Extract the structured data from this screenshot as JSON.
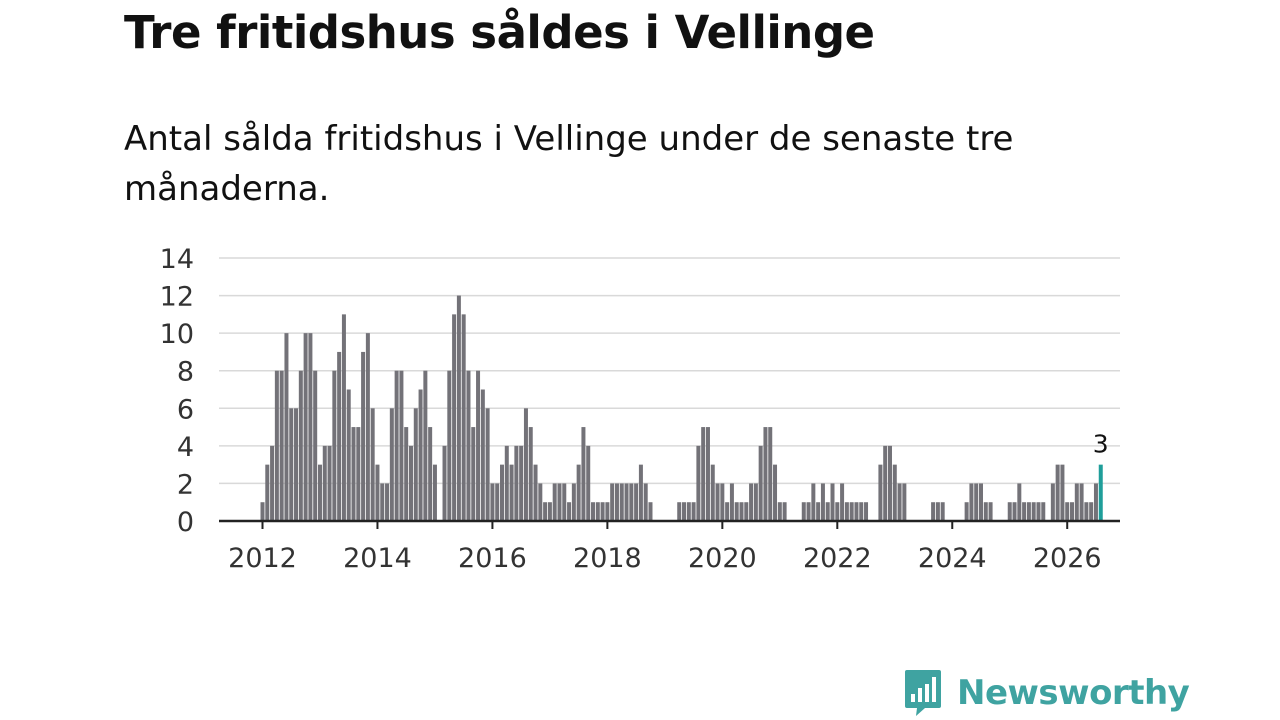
{
  "title": "Tre fritidshus såldes i Vellinge",
  "subtitle": "Antal sålda fritidshus i Vellinge under de senaste tre månaderna.",
  "brand": "Newsworthy",
  "colors": {
    "bar": "#737278",
    "highlight": "#1f9e9a",
    "grid": "#d9d9d9",
    "axis": "#222222",
    "brand": "#3fa3a1"
  },
  "chart_data": {
    "type": "bar",
    "title": "Tre fritidshus såldes i Vellinge",
    "xlabel": "",
    "ylabel": "",
    "ylim": [
      0,
      14
    ],
    "yticks": [
      "0",
      "2",
      "4",
      "6",
      "8",
      "10",
      "12",
      "14"
    ],
    "xticks": [
      "2012",
      "2014",
      "2016",
      "2018",
      "2020",
      "2022",
      "2024",
      "2026"
    ],
    "x_start": "2012-01",
    "highlight_label": "3",
    "values": [
      1,
      3,
      4,
      8,
      8,
      10,
      6,
      6,
      8,
      10,
      10,
      8,
      3,
      4,
      4,
      8,
      9,
      11,
      7,
      5,
      5,
      9,
      10,
      6,
      3,
      2,
      2,
      6,
      8,
      8,
      5,
      4,
      6,
      7,
      8,
      5,
      3,
      0,
      4,
      8,
      11,
      12,
      11,
      8,
      5,
      8,
      7,
      6,
      2,
      2,
      3,
      4,
      3,
      4,
      4,
      6,
      5,
      3,
      2,
      1,
      1,
      2,
      2,
      2,
      1,
      2,
      3,
      5,
      4,
      1,
      1,
      1,
      1,
      2,
      2,
      2,
      2,
      2,
      2,
      3,
      2,
      1,
      0,
      0,
      0,
      0,
      0,
      1,
      1,
      1,
      1,
      4,
      5,
      5,
      3,
      2,
      2,
      1,
      2,
      1,
      1,
      1,
      2,
      2,
      4,
      5,
      5,
      3,
      1,
      1,
      0,
      0,
      0,
      1,
      1,
      2,
      1,
      2,
      1,
      2,
      1,
      2,
      1,
      1,
      1,
      1,
      1,
      0,
      0,
      3,
      4,
      4,
      3,
      2,
      2,
      0,
      0,
      0,
      0,
      0,
      1,
      1,
      1,
      0,
      0,
      0,
      0,
      1,
      2,
      2,
      2,
      1,
      1,
      0,
      0,
      0,
      1,
      1,
      2,
      1,
      1,
      1,
      1,
      1,
      0,
      2,
      3,
      3,
      1,
      1,
      2,
      2,
      1,
      1,
      2,
      3
    ]
  }
}
